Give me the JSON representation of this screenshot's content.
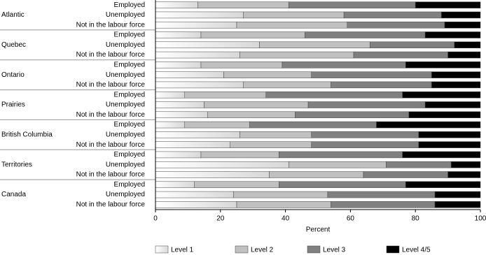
{
  "chart_data": {
    "type": "stacked-barh",
    "groups": [
      "Atlantic",
      "Quebec",
      "Ontario",
      "Prairies",
      "British Columbia",
      "Territories",
      "Canada"
    ],
    "categories": [
      "Employed",
      "Unemployed",
      "Not in the labour force",
      "Employed",
      "Unemployed",
      "Not in the labour force",
      "Employed",
      "Unemployed",
      "Not in the labour force",
      "Employed",
      "Unemployed",
      "Not in the labour force",
      "Employed",
      "Unemployed",
      "Not in the labour force",
      "Employed",
      "Unemployed",
      "Not in the labour force",
      "Employed",
      "Unemployed",
      "Not in the labour force"
    ],
    "series": [
      {
        "name": "Level 1",
        "color": "#d8d8d8",
        "values": [
          13,
          27,
          25,
          14,
          32,
          26,
          14,
          21,
          27,
          9,
          15,
          16,
          9,
          26,
          23,
          14,
          41,
          35,
          12,
          24,
          25
        ]
      },
      {
        "name": "Level 2",
        "color": "#c0c0c0",
        "values": [
          28,
          31,
          34,
          32,
          34,
          35,
          25,
          27,
          27,
          25,
          32,
          27,
          20,
          22,
          25,
          24,
          30,
          29,
          26,
          29,
          29
        ]
      },
      {
        "name": "Level 3",
        "color": "#808080",
        "values": [
          39,
          30,
          30,
          37,
          26,
          29,
          38,
          37,
          31,
          42,
          36,
          35,
          39,
          33,
          33,
          38,
          20,
          26,
          39,
          33,
          32
        ]
      },
      {
        "name": "Level 4/5",
        "color": "#000000",
        "values": [
          20,
          12,
          11,
          17,
          8,
          10,
          23,
          15,
          15,
          24,
          17,
          22,
          32,
          19,
          19,
          24,
          9,
          10,
          23,
          14,
          14
        ]
      }
    ],
    "xlabel": "Percent",
    "xlim": [
      0,
      100
    ],
    "xticks": [
      0,
      20,
      40,
      60,
      80,
      100
    ],
    "group_color": "#2a8a5a"
  }
}
